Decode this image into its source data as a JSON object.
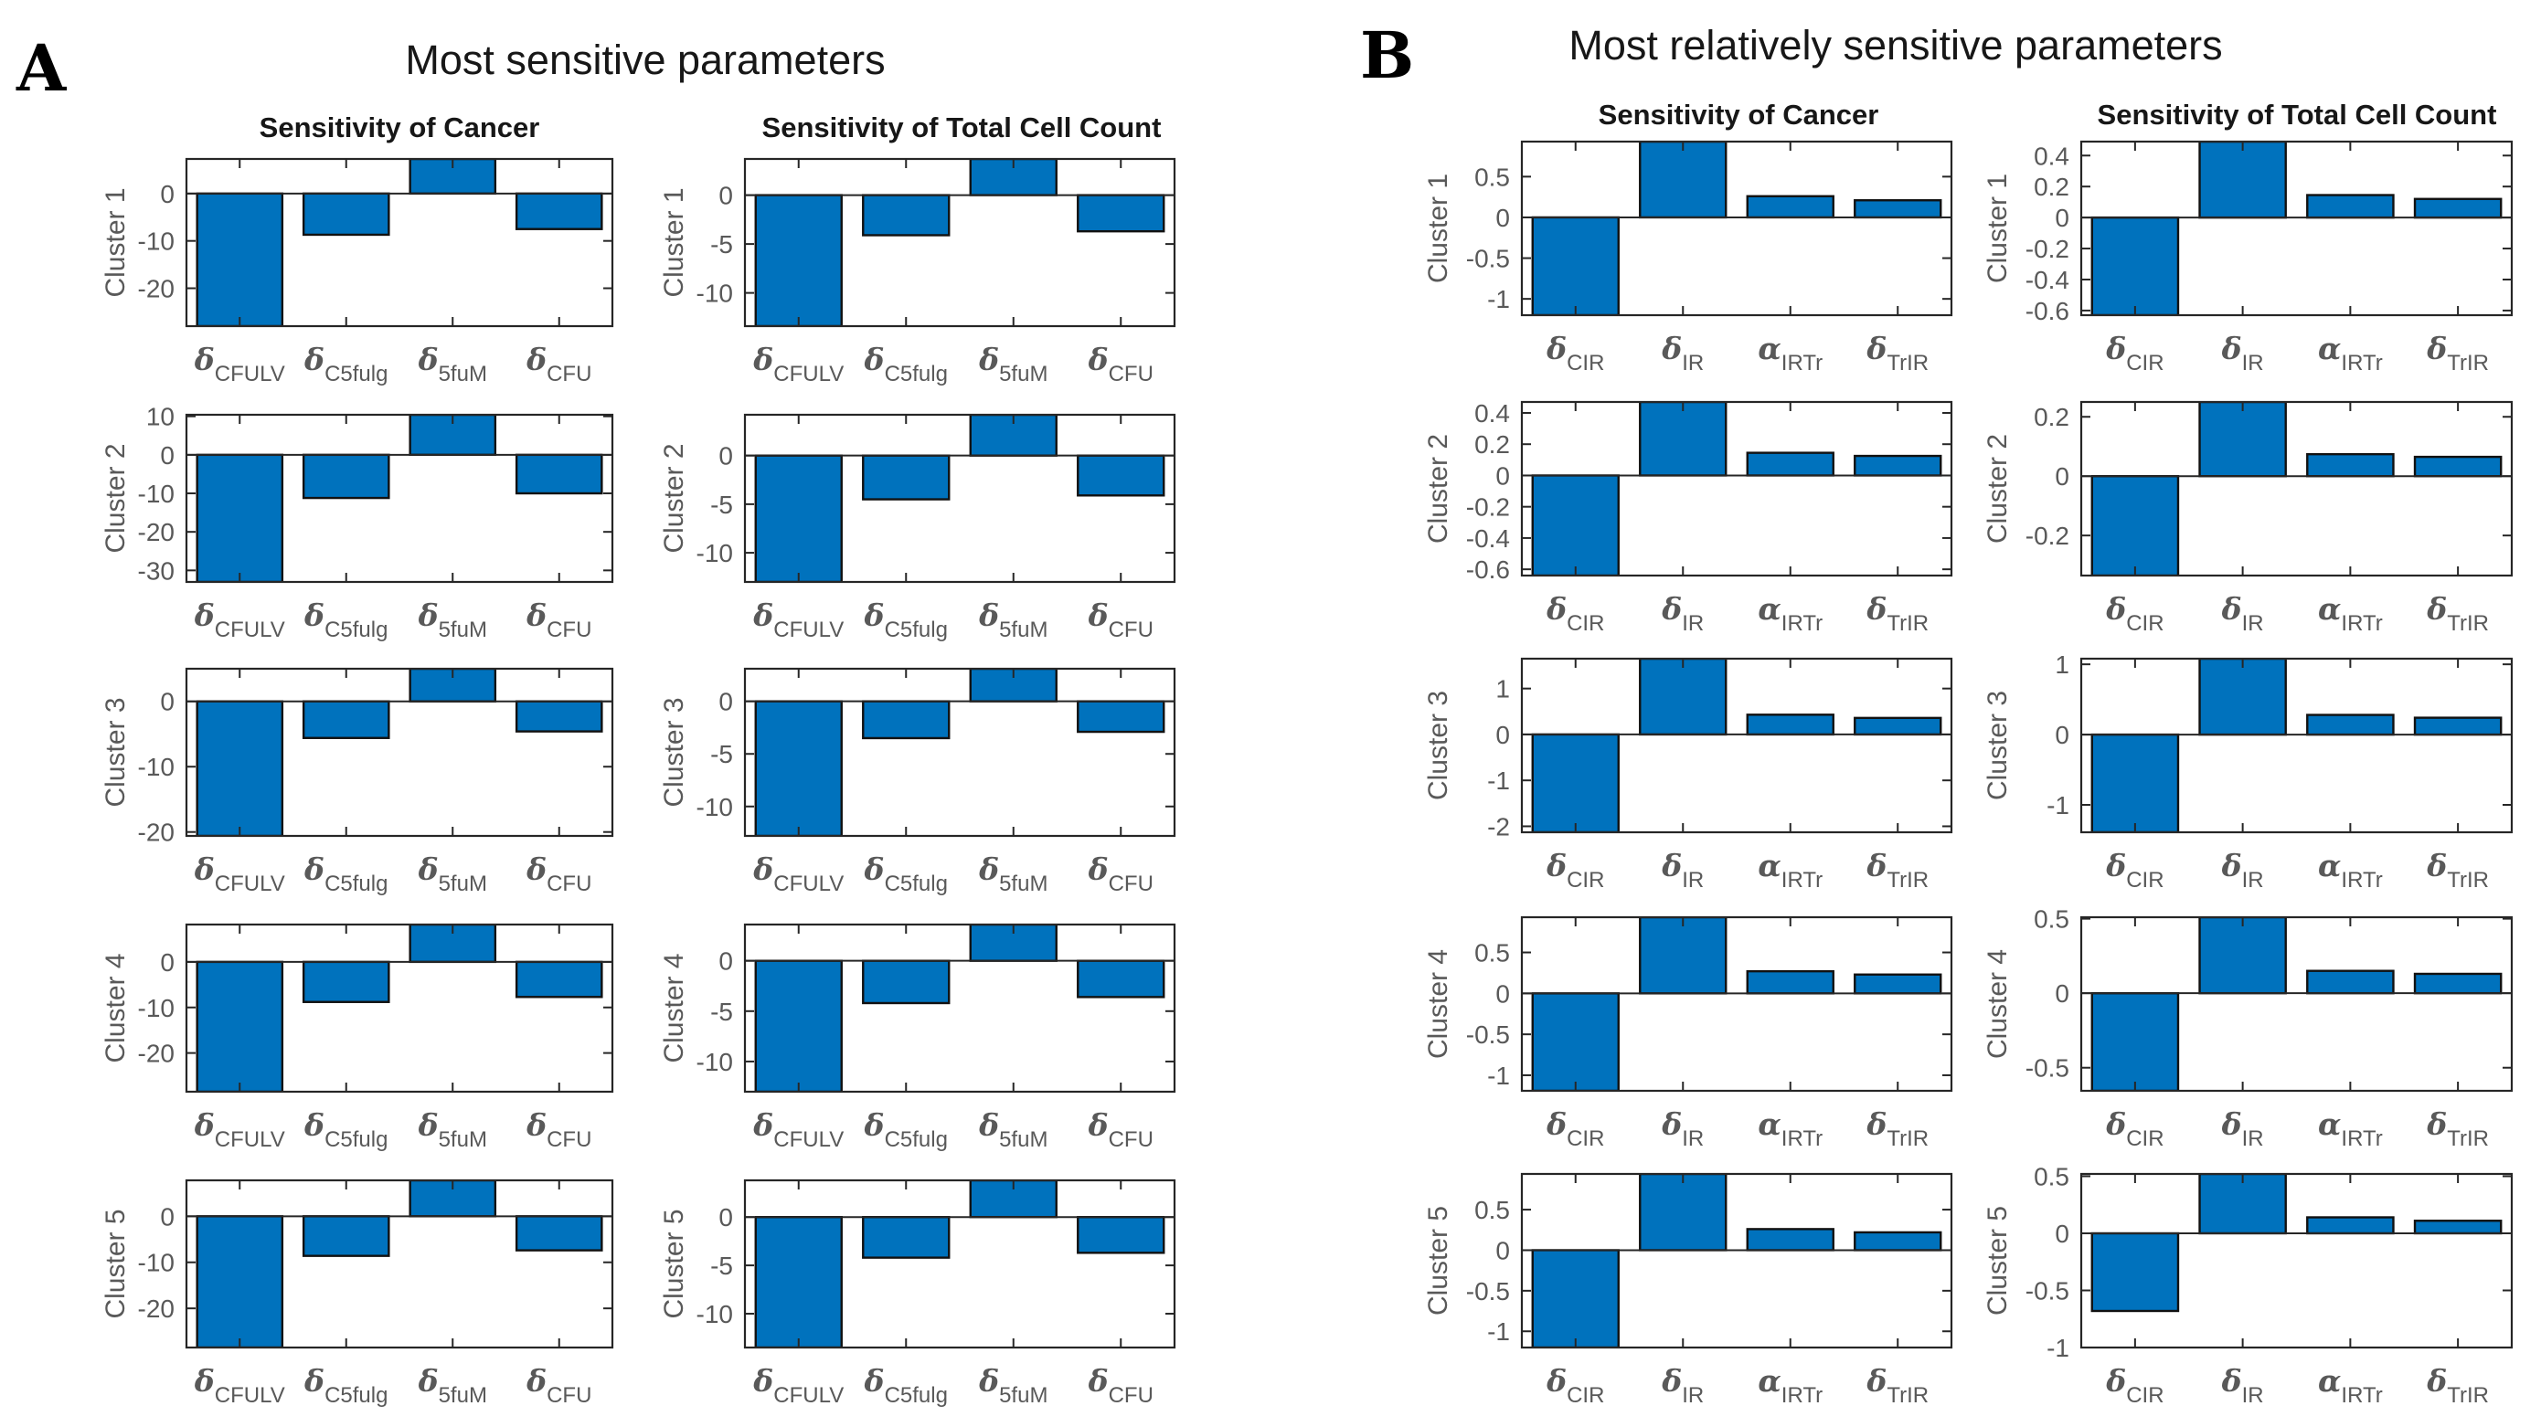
{
  "figure": {
    "background": "#ffffff"
  },
  "styles": {
    "bar_color": "#0072BD",
    "bar_edge_color": "#111111",
    "axis_color": "#262626",
    "tick_label_color": "#595959",
    "title_color": "#171717"
  },
  "chart_data": [
    {
      "panel_label": "A",
      "title": "Most sensitive parameters",
      "type": "bar",
      "grid": false,
      "legend_position": "none",
      "bar_color": "#0072BD",
      "columns": [
        "Sensitivity of Cancer",
        "Sensitivity of Total Cell Count"
      ],
      "categories": [
        {
          "symbol": "δ",
          "subscript": "CFULV",
          "label": "δ_CFULV"
        },
        {
          "symbol": "δ",
          "subscript": "C5fulg",
          "label": "δ_C5fulg"
        },
        {
          "symbol": "δ",
          "subscript": "5fuM",
          "label": "δ_5fuM"
        },
        {
          "symbol": "δ",
          "subscript": "CFU",
          "label": "δ_CFU"
        }
      ],
      "rows": [
        {
          "cluster": "Cluster 1",
          "plots": [
            {
              "ylim": [
                -28,
                7.3
              ],
              "yticks": [
                0,
                -10,
                -20
              ],
              "values": [
                -28,
                -8.7,
                7.3,
                -7.5
              ]
            },
            {
              "ylim": [
                -13.4,
                3.7
              ],
              "yticks": [
                0,
                -5,
                -10
              ],
              "values": [
                -13.4,
                -4.1,
                3.7,
                -3.7
              ]
            }
          ]
        },
        {
          "cluster": "Cluster 2",
          "plots": [
            {
              "ylim": [
                -33,
                10.4
              ],
              "yticks": [
                10,
                0,
                -10,
                -20,
                -30
              ],
              "values": [
                -33,
                -11.2,
                10.4,
                -10
              ]
            },
            {
              "ylim": [
                -13,
                4.2
              ],
              "yticks": [
                0,
                -5,
                -10
              ],
              "values": [
                -13,
                -4.5,
                4.2,
                -4.1
              ]
            }
          ]
        },
        {
          "cluster": "Cluster 3",
          "plots": [
            {
              "ylim": [
                -20.6,
                5.0
              ],
              "yticks": [
                0,
                -10,
                -20
              ],
              "values": [
                -20.6,
                -5.6,
                5.0,
                -4.6
              ]
            },
            {
              "ylim": [
                -12.8,
                3.1
              ],
              "yticks": [
                0,
                -5,
                -10
              ],
              "values": [
                -12.8,
                -3.5,
                3.1,
                -2.9
              ]
            }
          ]
        },
        {
          "cluster": "Cluster 4",
          "plots": [
            {
              "ylim": [
                -28.5,
                8.2
              ],
              "yticks": [
                0,
                -10,
                -20
              ],
              "values": [
                -28.5,
                -8.8,
                8.2,
                -7.7
              ]
            },
            {
              "ylim": [
                -13,
                3.6
              ],
              "yticks": [
                0,
                -5,
                -10
              ],
              "values": [
                -13,
                -4.2,
                3.6,
                -3.6
              ]
            }
          ]
        },
        {
          "cluster": "Cluster 5",
          "plots": [
            {
              "ylim": [
                -28.5,
                7.8
              ],
              "yticks": [
                0,
                -10,
                -20
              ],
              "values": [
                -28.5,
                -8.6,
                7.8,
                -7.4
              ]
            },
            {
              "ylim": [
                -13.5,
                3.8
              ],
              "yticks": [
                0,
                -5,
                -10
              ],
              "values": [
                -13.5,
                -4.2,
                3.8,
                -3.7
              ]
            }
          ]
        }
      ]
    },
    {
      "panel_label": "B",
      "title": "Most relatively sensitive parameters",
      "type": "bar",
      "grid": false,
      "legend_position": "none",
      "bar_color": "#0072BD",
      "columns": [
        "Sensitivity of Cancer",
        "Sensitivity of Total Cell Count"
      ],
      "categories": [
        {
          "symbol": "δ",
          "subscript": "CIR",
          "label": "δ_CIR"
        },
        {
          "symbol": "δ",
          "subscript": "IR",
          "label": "δ_IR"
        },
        {
          "symbol": "α",
          "subscript": "IRTr",
          "label": "α_IRTr"
        },
        {
          "symbol": "δ",
          "subscript": "TrIR",
          "label": "δ_TrIR"
        }
      ],
      "rows": [
        {
          "cluster": "Cluster 1",
          "plots": [
            {
              "ylim": [
                -1.2,
                0.93
              ],
              "yticks": [
                0.5,
                0,
                -0.5,
                -1
              ],
              "values": [
                -1.2,
                0.93,
                0.26,
                0.21
              ]
            },
            {
              "ylim": [
                -0.63,
                0.49
              ],
              "yticks": [
                0.4,
                0.2,
                0,
                -0.2,
                -0.4,
                -0.6
              ],
              "values": [
                -0.63,
                0.49,
                0.145,
                0.12
              ]
            }
          ]
        },
        {
          "cluster": "Cluster 2",
          "plots": [
            {
              "ylim": [
                -0.64,
                0.47
              ],
              "yticks": [
                0.4,
                0.2,
                0,
                -0.2,
                -0.4,
                -0.6
              ],
              "values": [
                -0.64,
                0.47,
                0.145,
                0.125
              ]
            },
            {
              "ylim": [
                -0.335,
                0.25
              ],
              "yticks": [
                0.2,
                0,
                -0.2
              ],
              "values": [
                -0.335,
                0.25,
                0.074,
                0.065
              ]
            }
          ]
        },
        {
          "cluster": "Cluster 3",
          "plots": [
            {
              "ylim": [
                -2.13,
                1.65
              ],
              "yticks": [
                1,
                0,
                -1,
                -2
              ],
              "values": [
                -2.13,
                1.65,
                0.43,
                0.36
              ]
            },
            {
              "ylim": [
                -1.39,
                1.08
              ],
              "yticks": [
                1,
                0,
                -1
              ],
              "values": [
                -1.39,
                1.08,
                0.28,
                0.24
              ]
            }
          ]
        },
        {
          "cluster": "Cluster 4",
          "plots": [
            {
              "ylim": [
                -1.19,
                0.93
              ],
              "yticks": [
                0.5,
                0,
                -0.5,
                -1
              ],
              "values": [
                -1.19,
                0.93,
                0.27,
                0.23
              ]
            },
            {
              "ylim": [
                -0.655,
                0.51
              ],
              "yticks": [
                0.5,
                0,
                -0.5
              ],
              "values": [
                -0.655,
                0.51,
                0.15,
                0.13
              ]
            }
          ]
        },
        {
          "cluster": "Cluster 5",
          "plots": [
            {
              "ylim": [
                -1.2,
                0.94
              ],
              "yticks": [
                0.5,
                0,
                -0.5,
                -1
              ],
              "values": [
                -1.2,
                0.94,
                0.26,
                0.22
              ]
            },
            {
              "ylim": [
                -1.0,
                0.52
              ],
              "yticks": [
                0.5,
                0,
                -0.5,
                -1
              ],
              "values": [
                -0.68,
                0.52,
                0.14,
                0.11
              ]
            }
          ]
        }
      ]
    }
  ]
}
